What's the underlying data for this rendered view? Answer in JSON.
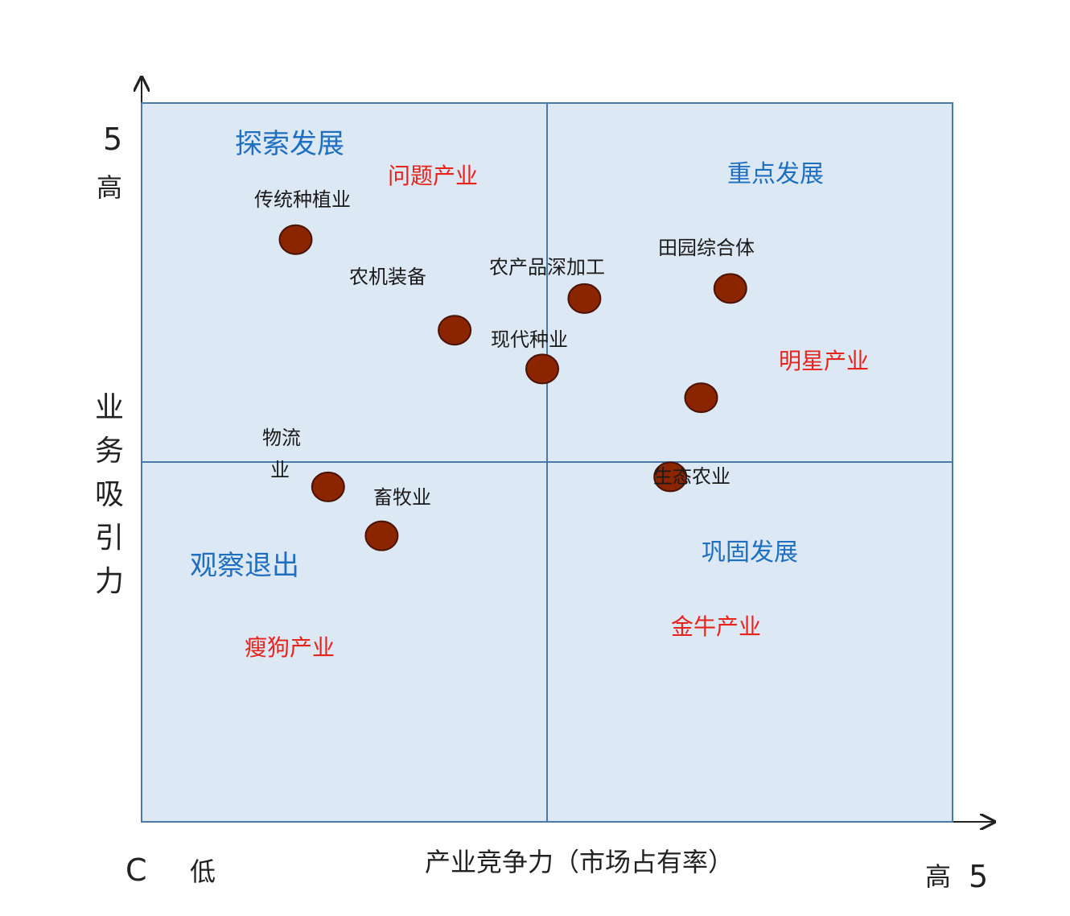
{
  "chart_data": {
    "type": "scatter",
    "xlabel": "产业竞争力（市场占有率）",
    "ylabel": "业务吸引力",
    "xlim": [
      0,
      5
    ],
    "ylim": [
      0,
      5
    ],
    "x_range_labels": {
      "min": "C",
      "low": "低",
      "high": "高",
      "max": "5"
    },
    "y_range_labels": {
      "max": "5",
      "high": "高"
    },
    "colors": {
      "quadrant_fill": "#dde8f5",
      "quadrant_border": "#4a78a8",
      "quadrant_name": "#1f6fc0",
      "quadrant_type": "#e8231c",
      "point_fill": "#8b2500",
      "point_stroke": "#4a1200"
    },
    "quadrants": [
      {
        "id": "top-left",
        "name": "探索发展",
        "type": "问题产业"
      },
      {
        "id": "top-right",
        "name": "重点发展",
        "type": "明星产业"
      },
      {
        "id": "bottom-left",
        "name": "观察退出",
        "type": "瘦狗产业"
      },
      {
        "id": "bottom-right",
        "name": "巩固发展",
        "type": "金牛产业"
      }
    ],
    "points": [
      {
        "label": "传统种植业",
        "x": 0.95,
        "y": 4.05
      },
      {
        "label": "农机装备",
        "x": 1.93,
        "y": 3.42
      },
      {
        "label": "农产品深加工",
        "x": 2.73,
        "y": 3.64
      },
      {
        "label": "现代种业",
        "x": 2.47,
        "y": 3.15
      },
      {
        "label": "田园综合体",
        "x": 3.63,
        "y": 3.71
      },
      {
        "label": "",
        "x": 3.45,
        "y": 2.95
      },
      {
        "label": "物流业",
        "x": 1.15,
        "y": 2.33
      },
      {
        "label": "畜牧业",
        "x": 1.48,
        "y": 1.99
      },
      {
        "label": "生态农业",
        "x": 3.26,
        "y": 2.4
      }
    ]
  }
}
